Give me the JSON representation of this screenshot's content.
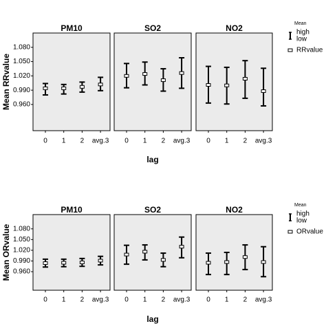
{
  "chart_data": [
    {
      "type": "errorbar",
      "ylabel": "Mean RRvalue",
      "xlabel": "lag",
      "ylim": [
        0.905,
        1.11
      ],
      "yticks": [
        {
          "value": 0.96,
          "label": "0.960"
        },
        {
          "value": 0.99,
          "label": "0.990"
        },
        {
          "value": 1.02,
          "label": "1.020"
        },
        {
          "value": 1.05,
          "label": "1.050"
        },
        {
          "value": 1.08,
          "label": "1.080"
        }
      ],
      "categories": [
        "0",
        "1",
        "2",
        "avg.3"
      ],
      "legend": {
        "title": "Mean",
        "high": "high",
        "low": "low",
        "value": "RRvalue"
      },
      "panels": [
        {
          "title": "PM10",
          "values": [
            0.994,
            0.994,
            0.997,
            1.002
          ],
          "high": [
            1.004,
            1.002,
            1.007,
            1.017
          ],
          "low": [
            0.98,
            0.982,
            0.986,
            0.989
          ]
        },
        {
          "title": "SO2",
          "values": [
            1.02,
            1.024,
            1.011,
            1.026
          ],
          "high": [
            1.046,
            1.049,
            1.035,
            1.058
          ],
          "low": [
            0.995,
            1.001,
            0.988,
            0.994
          ]
        },
        {
          "title": "NO2",
          "values": [
            1.001,
            1.0,
            1.014,
            0.988
          ],
          "high": [
            1.04,
            1.038,
            1.052,
            1.036
          ],
          "low": [
            0.963,
            0.961,
            0.973,
            0.957
          ]
        }
      ]
    },
    {
      "type": "errorbar",
      "ylabel": "Mean ORvalue",
      "xlabel": "lag",
      "ylim": [
        0.908,
        1.12
      ],
      "yticks": [
        {
          "value": 0.96,
          "label": "0.960"
        },
        {
          "value": 0.99,
          "label": "0.990"
        },
        {
          "value": 1.02,
          "label": "1.020"
        },
        {
          "value": 1.05,
          "label": "1.050"
        },
        {
          "value": 1.08,
          "label": "1.080"
        }
      ],
      "categories": [
        "0",
        "1",
        "2",
        "avg.3"
      ],
      "legend": {
        "title": "Mean",
        "high": "high",
        "low": "low",
        "value": "ORvalue"
      },
      "panels": [
        {
          "title": "PM10",
          "values": [
            0.984,
            0.985,
            0.986,
            0.991
          ],
          "high": [
            0.995,
            0.995,
            0.997,
            1.003
          ],
          "low": [
            0.973,
            0.974,
            0.975,
            0.979
          ]
        },
        {
          "title": "SO2",
          "values": [
            1.008,
            1.016,
            0.993,
            1.03
          ],
          "high": [
            1.034,
            1.035,
            1.012,
            1.057
          ],
          "low": [
            0.981,
            0.993,
            0.974,
            0.999
          ]
        },
        {
          "title": "NO2",
          "values": [
            0.985,
            0.987,
            1.001,
            0.987
          ],
          "high": [
            1.012,
            1.014,
            1.035,
            1.03
          ],
          "low": [
            0.952,
            0.952,
            0.966,
            0.946
          ]
        }
      ]
    }
  ]
}
